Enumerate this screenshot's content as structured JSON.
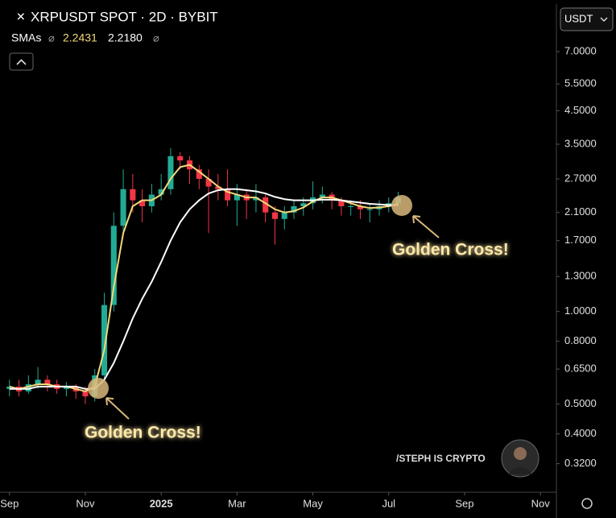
{
  "chart_data": {
    "type": "candlestick",
    "title": "XRPUSDT SPOT · 2D · BYBIT",
    "currency": "USDT",
    "indicator_label": "SMAs",
    "indicator_values": [
      2.2431,
      {
        "value": 2.218,
        "label": "2.2180"
      }
    ],
    "annotations": [
      "Golden Cross!",
      "Golden Cross!"
    ],
    "watermark": "/STEPH IS CRYPTO",
    "log_scale": true,
    "up_color": "#22ab94",
    "down_color": "#f23645",
    "x": [
      0,
      0.25,
      0.5,
      0.75,
      1,
      1.25,
      1.5,
      1.75,
      2,
      2.25,
      2.5,
      2.75,
      3,
      3.25,
      3.5,
      3.75,
      4,
      4.25,
      4.5,
      4.75,
      5,
      5.25,
      5.5,
      5.75,
      6,
      6.25,
      6.5,
      6.75,
      7,
      7.25,
      7.5,
      7.75,
      8,
      8.25,
      8.5,
      8.75,
      9,
      9.25,
      9.5,
      9.75,
      10,
      10.25
    ],
    "open": [
      0.56,
      0.57,
      0.55,
      0.58,
      0.6,
      0.58,
      0.56,
      0.57,
      0.55,
      0.53,
      0.62,
      1.05,
      1.9,
      2.5,
      2.3,
      2.2,
      2.4,
      2.5,
      3.2,
      3.1,
      2.9,
      2.7,
      2.55,
      2.5,
      2.3,
      2.4,
      2.3,
      2.35,
      2.1,
      2.0,
      2.1,
      2.2,
      2.25,
      2.35,
      2.4,
      2.3,
      2.2,
      2.2,
      2.15,
      2.15,
      2.2,
      2.25
    ],
    "high": [
      0.6,
      0.6,
      0.62,
      0.66,
      0.62,
      0.6,
      0.59,
      0.58,
      0.57,
      0.65,
      1.15,
      2.1,
      2.9,
      2.8,
      2.5,
      2.6,
      2.8,
      3.4,
      3.3,
      3.2,
      3.0,
      2.9,
      2.8,
      2.9,
      2.6,
      2.5,
      2.6,
      2.4,
      2.2,
      2.2,
      2.3,
      2.35,
      2.65,
      2.55,
      2.45,
      2.35,
      2.3,
      2.3,
      2.25,
      2.3,
      2.35,
      2.45
    ],
    "low": [
      0.53,
      0.53,
      0.54,
      0.56,
      0.55,
      0.54,
      0.53,
      0.52,
      0.5,
      0.51,
      0.6,
      1.0,
      1.8,
      2.1,
      1.95,
      2.1,
      2.3,
      2.4,
      2.9,
      2.6,
      2.5,
      1.8,
      2.3,
      2.2,
      1.9,
      2.0,
      2.1,
      1.95,
      1.65,
      1.85,
      2.0,
      2.05,
      2.15,
      2.25,
      2.15,
      2.05,
      2.05,
      2.0,
      1.95,
      2.05,
      2.1,
      2.2
    ],
    "close": [
      0.57,
      0.55,
      0.58,
      0.6,
      0.58,
      0.56,
      0.57,
      0.55,
      0.53,
      0.62,
      1.05,
      1.9,
      2.5,
      2.3,
      2.2,
      2.4,
      2.5,
      3.2,
      3.1,
      2.9,
      2.7,
      2.55,
      2.5,
      2.3,
      2.4,
      2.3,
      2.35,
      2.1,
      2.0,
      2.1,
      2.2,
      2.25,
      2.35,
      2.4,
      2.3,
      2.2,
      2.2,
      2.15,
      2.15,
      2.2,
      2.25,
      2.35
    ],
    "series": [
      {
        "color": "#f3d97a",
        "values": [
          0.57,
          0.56,
          0.57,
          0.58,
          0.58,
          0.57,
          0.57,
          0.56,
          0.55,
          0.57,
          0.75,
          1.2,
          1.8,
          2.2,
          2.3,
          2.3,
          2.4,
          2.7,
          2.95,
          3.0,
          2.85,
          2.7,
          2.55,
          2.45,
          2.4,
          2.35,
          2.35,
          2.25,
          2.15,
          2.1,
          2.12,
          2.18,
          2.28,
          2.35,
          2.35,
          2.3,
          2.25,
          2.2,
          2.17,
          2.18,
          2.2,
          2.24
        ]
      },
      {
        "color": "#ffffff",
        "values": [
          0.56,
          0.56,
          0.56,
          0.57,
          0.57,
          0.57,
          0.57,
          0.57,
          0.56,
          0.56,
          0.6,
          0.68,
          0.8,
          0.95,
          1.1,
          1.25,
          1.45,
          1.7,
          1.95,
          2.15,
          2.3,
          2.42,
          2.48,
          2.5,
          2.5,
          2.48,
          2.46,
          2.42,
          2.36,
          2.32,
          2.3,
          2.3,
          2.3,
          2.31,
          2.31,
          2.3,
          2.28,
          2.26,
          2.24,
          2.23,
          2.22,
          2.22
        ]
      }
    ],
    "xlim": [
      -0.25,
      14.4
    ],
    "xticks": [
      {
        "value": 0,
        "label": "Sep"
      },
      {
        "value": 2,
        "label": "Nov"
      },
      {
        "value": 4,
        "label": "2025"
      },
      {
        "value": 6,
        "label": "Mar"
      },
      {
        "value": 8,
        "label": "May"
      },
      {
        "value": 10,
        "label": "Jul"
      },
      {
        "value": 12,
        "label": "Sep"
      },
      {
        "value": 14,
        "label": "Nov"
      }
    ],
    "ylim": [
      0.26,
      10
    ],
    "yticks": [
      {
        "value": 7,
        "label": "7.0000"
      },
      {
        "value": 5.5,
        "label": "5.5000"
      },
      {
        "value": 4.5,
        "label": "4.5000"
      },
      {
        "value": 3.5,
        "label": "3.5000"
      },
      {
        "value": 2.7,
        "label": "2.7000"
      },
      {
        "value": 2.1,
        "label": "2.1000"
      },
      {
        "value": 1.7,
        "label": "1.7000"
      },
      {
        "value": 1.3,
        "label": "1.3000"
      },
      {
        "value": 1,
        "label": "1.0000"
      },
      {
        "value": 0.8,
        "label": "0.8000"
      },
      {
        "value": 0.65,
        "label": "0.6500"
      },
      {
        "value": 0.5,
        "label": "0.5000"
      },
      {
        "value": 0.4,
        "label": "0.4000"
      },
      {
        "value": 0.32,
        "label": "0.3200"
      }
    ]
  }
}
